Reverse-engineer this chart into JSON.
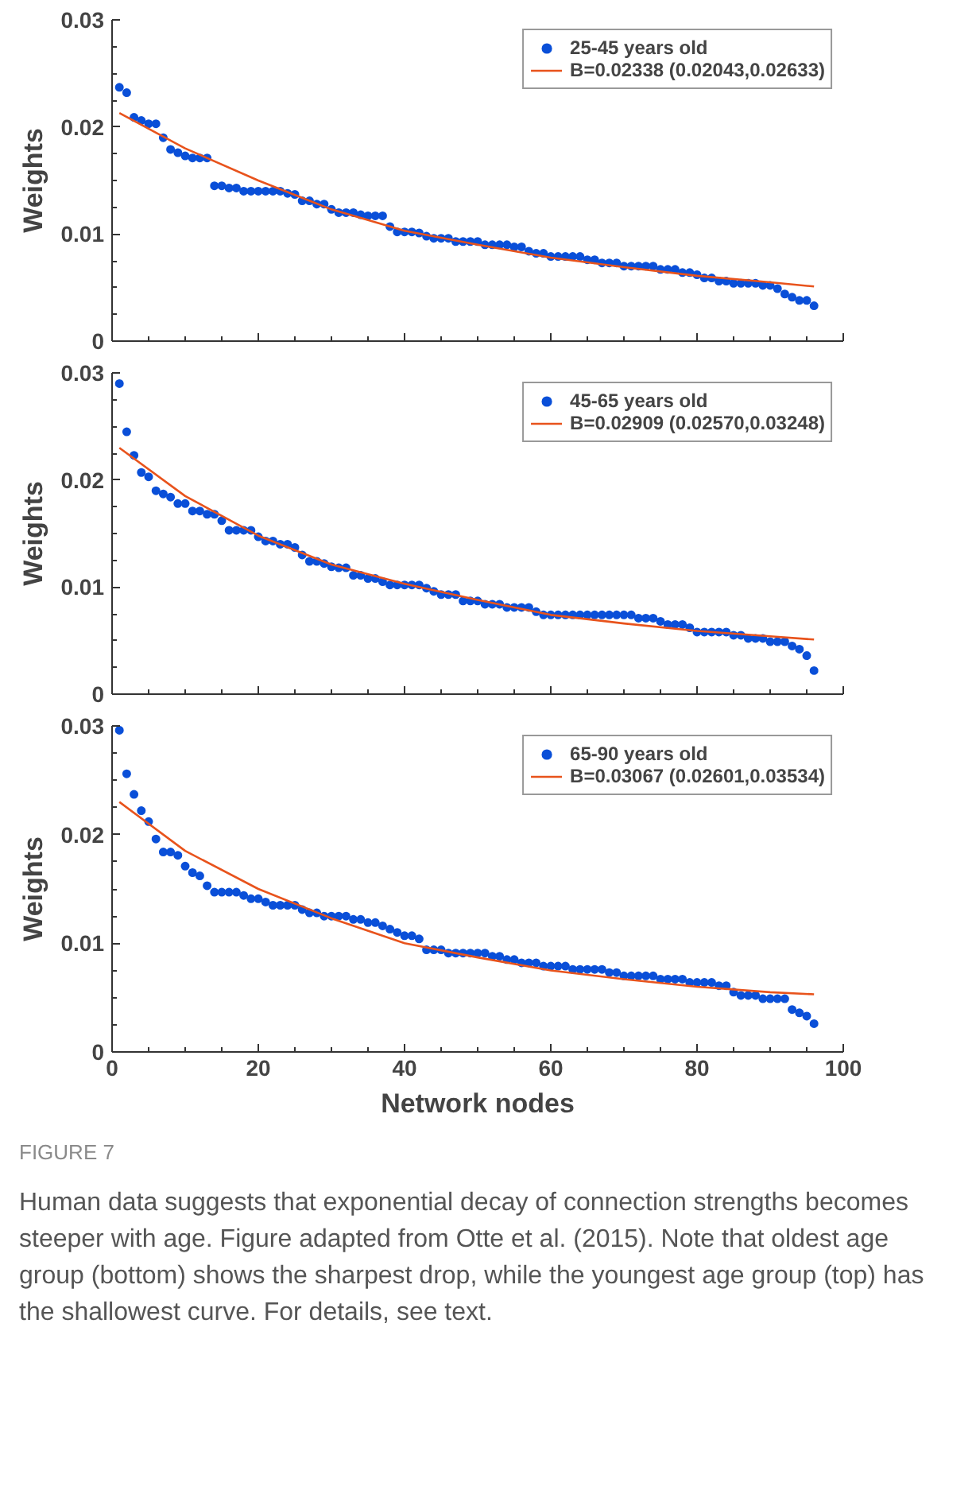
{
  "chart_data": [
    {
      "type": "scatter",
      "ylabel": "Weights",
      "xlim": [
        0,
        100
      ],
      "xticks": [
        0,
        20,
        40,
        60,
        80,
        100
      ],
      "ylim": [
        0,
        0.03
      ],
      "yticks": [
        0,
        0.01,
        0.02,
        0.03
      ],
      "tick_labels": "y",
      "grid": false,
      "legend": "top right",
      "series": [
        {
          "name": "25-45 years old",
          "marker": "circle",
          "color": "#0a4fd8",
          "x": [
            1,
            2,
            3,
            4,
            5,
            6,
            7,
            8,
            9,
            10,
            11,
            12,
            13,
            14,
            15,
            16,
            17,
            18,
            19,
            20,
            21,
            22,
            23,
            24,
            25,
            26,
            27,
            28,
            29,
            30,
            31,
            32,
            33,
            34,
            35,
            36,
            37,
            38,
            39,
            40,
            41,
            42,
            43,
            44,
            45,
            46,
            47,
            48,
            49,
            50,
            51,
            52,
            53,
            54,
            55,
            56,
            57,
            58,
            59,
            60,
            61,
            62,
            63,
            64,
            65,
            66,
            67,
            68,
            69,
            70,
            71,
            72,
            73,
            74,
            75,
            76,
            77,
            78,
            79,
            80,
            81,
            82,
            83,
            84,
            85,
            86,
            87,
            88,
            89,
            90,
            91,
            92,
            93,
            94,
            95,
            96
          ],
          "values": [
            0.0237,
            0.0232,
            0.0209,
            0.0206,
            0.0203,
            0.0203,
            0.019,
            0.0179,
            0.0176,
            0.0173,
            0.0171,
            0.0171,
            0.0171,
            0.0145,
            0.0145,
            0.0143,
            0.0143,
            0.014,
            0.014,
            0.014,
            0.014,
            0.014,
            0.014,
            0.0138,
            0.0137,
            0.0131,
            0.0131,
            0.0128,
            0.0128,
            0.0123,
            0.012,
            0.012,
            0.012,
            0.0118,
            0.0117,
            0.0117,
            0.0117,
            0.0107,
            0.0102,
            0.0102,
            0.0102,
            0.0101,
            0.0098,
            0.0096,
            0.0096,
            0.0096,
            0.0093,
            0.0093,
            0.0093,
            0.0093,
            0.009,
            0.009,
            0.009,
            0.009,
            0.0088,
            0.0088,
            0.0084,
            0.0082,
            0.0082,
            0.0079,
            0.0079,
            0.0079,
            0.0079,
            0.0079,
            0.0076,
            0.0076,
            0.0073,
            0.0073,
            0.0073,
            0.007,
            0.007,
            0.007,
            0.007,
            0.007,
            0.0067,
            0.0067,
            0.0067,
            0.0064,
            0.0064,
            0.0062,
            0.0059,
            0.0059,
            0.0056,
            0.0056,
            0.0054,
            0.0054,
            0.0054,
            0.0054,
            0.0052,
            0.0052,
            0.0049,
            0.0044,
            0.0041,
            0.0038,
            0.0038,
            0.0033
          ]
        },
        {
          "name": "B=0.02338 (0.02043,0.02633)",
          "type": "line",
          "marker": "none",
          "line_style": "solid",
          "color": "#e8531c",
          "x": [
            1,
            10,
            20,
            30,
            40,
            50,
            60,
            70,
            80,
            90,
            96
          ],
          "values": [
            0.0213,
            0.018,
            0.015,
            0.0123,
            0.0103,
            0.009,
            0.0078,
            0.0069,
            0.0061,
            0.0055,
            0.0051
          ]
        }
      ]
    },
    {
      "type": "scatter",
      "ylabel": "Weights",
      "xlim": [
        0,
        100
      ],
      "xticks": [
        0,
        20,
        40,
        60,
        80,
        100
      ],
      "ylim": [
        0,
        0.03
      ],
      "yticks": [
        0,
        0.01,
        0.02,
        0.03
      ],
      "tick_labels": "y",
      "grid": false,
      "legend": "top right",
      "series": [
        {
          "name": "45-65 years old",
          "marker": "circle",
          "color": "#0a4fd8",
          "x": [
            1,
            2,
            3,
            4,
            5,
            6,
            7,
            8,
            9,
            10,
            11,
            12,
            13,
            14,
            15,
            16,
            17,
            18,
            19,
            20,
            21,
            22,
            23,
            24,
            25,
            26,
            27,
            28,
            29,
            30,
            31,
            32,
            33,
            34,
            35,
            36,
            37,
            38,
            39,
            40,
            41,
            42,
            43,
            44,
            45,
            46,
            47,
            48,
            49,
            50,
            51,
            52,
            53,
            54,
            55,
            56,
            57,
            58,
            59,
            60,
            61,
            62,
            63,
            64,
            65,
            66,
            67,
            68,
            69,
            70,
            71,
            72,
            73,
            74,
            75,
            76,
            77,
            78,
            79,
            80,
            81,
            82,
            83,
            84,
            85,
            86,
            87,
            88,
            89,
            90,
            91,
            92,
            93,
            94,
            95,
            96
          ],
          "values": [
            0.029,
            0.0245,
            0.0223,
            0.0207,
            0.0203,
            0.019,
            0.0187,
            0.0184,
            0.0178,
            0.0178,
            0.0171,
            0.0171,
            0.0168,
            0.0168,
            0.0162,
            0.0153,
            0.0153,
            0.0153,
            0.0153,
            0.0147,
            0.0143,
            0.0143,
            0.014,
            0.014,
            0.0137,
            0.013,
            0.0124,
            0.0124,
            0.0122,
            0.0119,
            0.0118,
            0.0118,
            0.0111,
            0.0111,
            0.0108,
            0.0108,
            0.0105,
            0.0102,
            0.0102,
            0.0102,
            0.0102,
            0.0102,
            0.0099,
            0.0096,
            0.0093,
            0.0093,
            0.0093,
            0.0087,
            0.0087,
            0.0087,
            0.0084,
            0.0084,
            0.0084,
            0.0081,
            0.0081,
            0.0081,
            0.0081,
            0.0077,
            0.0074,
            0.0074,
            0.0074,
            0.0074,
            0.0074,
            0.0074,
            0.0074,
            0.0074,
            0.0074,
            0.0074,
            0.0074,
            0.0074,
            0.0074,
            0.0071,
            0.0071,
            0.0071,
            0.0068,
            0.0065,
            0.0065,
            0.0065,
            0.0062,
            0.0058,
            0.0058,
            0.0058,
            0.0058,
            0.0058,
            0.0055,
            0.0055,
            0.0052,
            0.0052,
            0.0052,
            0.0049,
            0.0049,
            0.0049,
            0.0045,
            0.0042,
            0.0036,
            0.0022
          ]
        },
        {
          "name": "B=0.02909 (0.02570,0.03248)",
          "type": "line",
          "marker": "none",
          "line_style": "solid",
          "color": "#e8531c",
          "x": [
            1,
            10,
            20,
            30,
            40,
            50,
            60,
            70,
            80,
            90,
            96
          ],
          "values": [
            0.023,
            0.0185,
            0.0148,
            0.0121,
            0.0103,
            0.0088,
            0.0074,
            0.0066,
            0.0059,
            0.0054,
            0.0051
          ]
        }
      ]
    },
    {
      "type": "scatter",
      "xlabel": "Network nodes",
      "ylabel": "Weights",
      "xlim": [
        0,
        100
      ],
      "xticks": [
        0,
        20,
        40,
        60,
        80,
        100
      ],
      "ylim": [
        0,
        0.03
      ],
      "yticks": [
        0,
        0.01,
        0.02,
        0.03
      ],
      "grid": false,
      "legend": "top right",
      "annotations": [
        "FIGURE 7",
        "Human data suggests that exponential decay of connection strengths becomes steeper with age. Figure adapted from Otte et al. (2015). Note that oldest age group (bottom) shows the sharpest drop, while the youngest age group (top) has the shallowest curve. For details, see text."
      ],
      "series": [
        {
          "name": "65-90 years old",
          "marker": "circle",
          "color": "#0a4fd8",
          "x": [
            1,
            2,
            3,
            4,
            5,
            6,
            7,
            8,
            9,
            10,
            11,
            12,
            13,
            14,
            15,
            16,
            17,
            18,
            19,
            20,
            21,
            22,
            23,
            24,
            25,
            26,
            27,
            28,
            29,
            30,
            31,
            32,
            33,
            34,
            35,
            36,
            37,
            38,
            39,
            40,
            41,
            42,
            43,
            44,
            45,
            46,
            47,
            48,
            49,
            50,
            51,
            52,
            53,
            54,
            55,
            56,
            57,
            58,
            59,
            60,
            61,
            62,
            63,
            64,
            65,
            66,
            67,
            68,
            69,
            70,
            71,
            72,
            73,
            74,
            75,
            76,
            77,
            78,
            79,
            80,
            81,
            82,
            83,
            84,
            85,
            86,
            87,
            88,
            89,
            90,
            91,
            92,
            93,
            94,
            95,
            96
          ],
          "values": [
            0.0296,
            0.0256,
            0.0237,
            0.0222,
            0.0212,
            0.0196,
            0.0184,
            0.0184,
            0.0181,
            0.0171,
            0.0165,
            0.0162,
            0.0153,
            0.0147,
            0.0147,
            0.0147,
            0.0147,
            0.0144,
            0.0141,
            0.0141,
            0.0138,
            0.0135,
            0.0135,
            0.0135,
            0.0135,
            0.0131,
            0.0128,
            0.0128,
            0.0125,
            0.0125,
            0.0125,
            0.0125,
            0.0122,
            0.0122,
            0.0119,
            0.0119,
            0.0116,
            0.0113,
            0.011,
            0.0107,
            0.0107,
            0.0104,
            0.0094,
            0.0094,
            0.0094,
            0.0091,
            0.0091,
            0.0091,
            0.0091,
            0.0091,
            0.0091,
            0.0088,
            0.0088,
            0.0085,
            0.0085,
            0.0082,
            0.0082,
            0.0082,
            0.0079,
            0.0079,
            0.0079,
            0.0079,
            0.0076,
            0.0076,
            0.0076,
            0.0076,
            0.0076,
            0.0073,
            0.0073,
            0.007,
            0.007,
            0.007,
            0.007,
            0.007,
            0.0067,
            0.0067,
            0.0067,
            0.0067,
            0.0064,
            0.0064,
            0.0064,
            0.0064,
            0.0061,
            0.0061,
            0.0055,
            0.0052,
            0.0052,
            0.0052,
            0.0049,
            0.0049,
            0.0049,
            0.0049,
            0.0039,
            0.0036,
            0.0033,
            0.0026
          ]
        },
        {
          "name": "B=0.03067 (0.02601,0.03534)",
          "type": "line",
          "marker": "none",
          "line_style": "solid",
          "color": "#e8531c",
          "x": [
            1,
            10,
            20,
            30,
            40,
            50,
            60,
            70,
            80,
            90,
            96
          ],
          "values": [
            0.023,
            0.0185,
            0.015,
            0.0123,
            0.01,
            0.0087,
            0.0075,
            0.0067,
            0.006,
            0.0055,
            0.0053
          ]
        }
      ]
    }
  ]
}
